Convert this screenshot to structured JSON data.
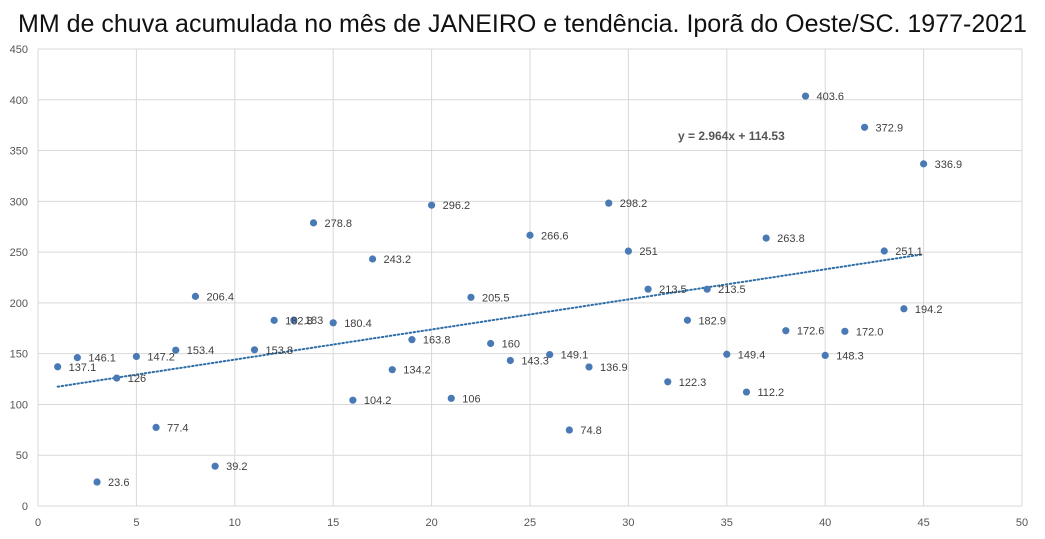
{
  "chart_data": {
    "type": "scatter",
    "title": "MM de chuva acumulada no mês de JANEIRO e tendência. Iporã do Oeste/SC. 1977-2021",
    "xlabel": "",
    "ylabel": "",
    "xlim": [
      0,
      50
    ],
    "ylim": [
      0,
      450
    ],
    "xticks": [
      "0",
      "5",
      "10",
      "15",
      "20",
      "25",
      "30",
      "35",
      "40",
      "45",
      "50"
    ],
    "yticks": [
      "0",
      "50",
      "100",
      "150",
      "200",
      "250",
      "300",
      "350",
      "400",
      "450"
    ],
    "grid": true,
    "legend": "none",
    "marker_color": "#4a7ab5",
    "trend_color": "#2e6ea6",
    "points": [
      {
        "x": 1,
        "y": 137.1,
        "label": "137.1"
      },
      {
        "x": 2,
        "y": 146.1,
        "label": "146.1"
      },
      {
        "x": 3,
        "y": 23.6,
        "label": "23.6"
      },
      {
        "x": 4,
        "y": 126,
        "label": "126"
      },
      {
        "x": 5,
        "y": 147.2,
        "label": "147.2"
      },
      {
        "x": 6,
        "y": 77.4,
        "label": "77.4"
      },
      {
        "x": 7,
        "y": 153.4,
        "label": "153.4"
      },
      {
        "x": 8,
        "y": 206.4,
        "label": "206.4"
      },
      {
        "x": 9,
        "y": 39.2,
        "label": "39.2"
      },
      {
        "x": 11,
        "y": 153.8,
        "label": "153.8"
      },
      {
        "x": 12,
        "y": 182.8,
        "label": "182.8"
      },
      {
        "x": 13,
        "y": 183,
        "label": "183"
      },
      {
        "x": 14,
        "y": 278.8,
        "label": "278.8"
      },
      {
        "x": 15,
        "y": 180.4,
        "label": "180.4"
      },
      {
        "x": 16,
        "y": 104.2,
        "label": "104.2"
      },
      {
        "x": 17,
        "y": 243.2,
        "label": "243.2"
      },
      {
        "x": 18,
        "y": 134.2,
        "label": "134.2"
      },
      {
        "x": 19,
        "y": 163.8,
        "label": "163.8"
      },
      {
        "x": 20,
        "y": 296.2,
        "label": "296.2"
      },
      {
        "x": 21,
        "y": 106,
        "label": "106"
      },
      {
        "x": 22,
        "y": 205.5,
        "label": "205.5"
      },
      {
        "x": 23,
        "y": 160,
        "label": "160"
      },
      {
        "x": 24,
        "y": 143.3,
        "label": "143.3"
      },
      {
        "x": 25,
        "y": 266.6,
        "label": "266.6"
      },
      {
        "x": 26,
        "y": 149.1,
        "label": "149.1"
      },
      {
        "x": 27,
        "y": 74.8,
        "label": "74.8"
      },
      {
        "x": 28,
        "y": 136.9,
        "label": "136.9"
      },
      {
        "x": 29,
        "y": 298.2,
        "label": "298.2"
      },
      {
        "x": 30,
        "y": 251,
        "label": "251"
      },
      {
        "x": 31,
        "y": 213.5,
        "label": "213.5"
      },
      {
        "x": 32,
        "y": 122.3,
        "label": "122.3"
      },
      {
        "x": 33,
        "y": 182.9,
        "label": "182.9"
      },
      {
        "x": 34,
        "y": 213.5,
        "label": "213.5"
      },
      {
        "x": 35,
        "y": 149.4,
        "label": "149.4"
      },
      {
        "x": 36,
        "y": 112.2,
        "label": "112.2"
      },
      {
        "x": 37,
        "y": 263.8,
        "label": "263.8"
      },
      {
        "x": 38,
        "y": 172.6,
        "label": "172.6"
      },
      {
        "x": 39,
        "y": 403.6,
        "label": "403.6"
      },
      {
        "x": 40,
        "y": 148.3,
        "label": "148.3"
      },
      {
        "x": 41,
        "y": 172.0,
        "label": "172.0"
      },
      {
        "x": 42,
        "y": 372.9,
        "label": "372.9"
      },
      {
        "x": 43,
        "y": 251.1,
        "label": "251.1"
      },
      {
        "x": 44,
        "y": 194.2,
        "label": "194.2"
      },
      {
        "x": 45,
        "y": 336.9,
        "label": "336.9"
      }
    ],
    "trendline": {
      "type": "linear",
      "slope": 2.964,
      "intercept": 114.53,
      "x_range": [
        1,
        45
      ],
      "equation": "y = 2.964x + 114.53"
    }
  }
}
